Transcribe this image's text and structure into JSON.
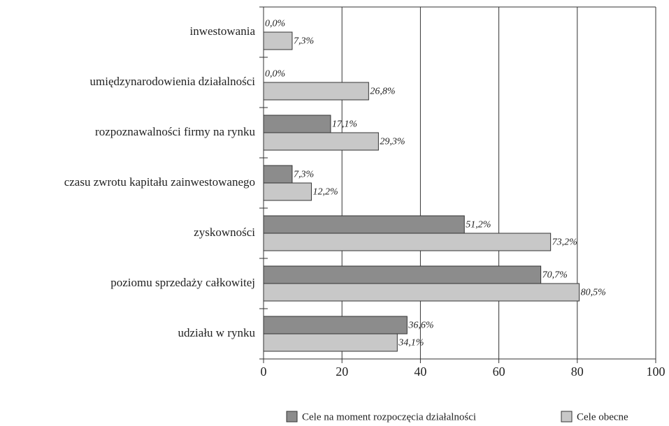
{
  "chart_data": {
    "type": "bar",
    "orientation": "horizontal",
    "categories": [
      "inwestowania",
      "umiędzynarodowienia działalności",
      "rozpoznawalności firmy na rynku",
      "czasu zwrotu kapitału zainwestowanego",
      "zyskowności",
      "poziomu sprzedaży całkowitej",
      "udziału w rynku"
    ],
    "series": [
      {
        "name": "Cele na moment rozpoczęcia działalności",
        "color": "#8c8c8c",
        "values": [
          0.0,
          0.0,
          17.1,
          7.3,
          51.2,
          70.7,
          36.6
        ],
        "value_labels": [
          "0,0%",
          "0,0%",
          "17,1%",
          "7,3%",
          "51,2%",
          "70,7%",
          "36,6%"
        ]
      },
      {
        "name": "Cele obecne",
        "color": "#c8c8c8",
        "values": [
          7.3,
          26.8,
          29.3,
          12.2,
          73.2,
          80.5,
          34.1
        ],
        "value_labels": [
          "7,3%",
          "26,8%",
          "29,3%",
          "12,2%",
          "73,2%",
          "80,5%",
          "34,1%"
        ]
      }
    ],
    "xlim": [
      0,
      100
    ],
    "xticks": [
      0,
      20,
      40,
      60,
      80,
      100
    ],
    "grid": true
  }
}
